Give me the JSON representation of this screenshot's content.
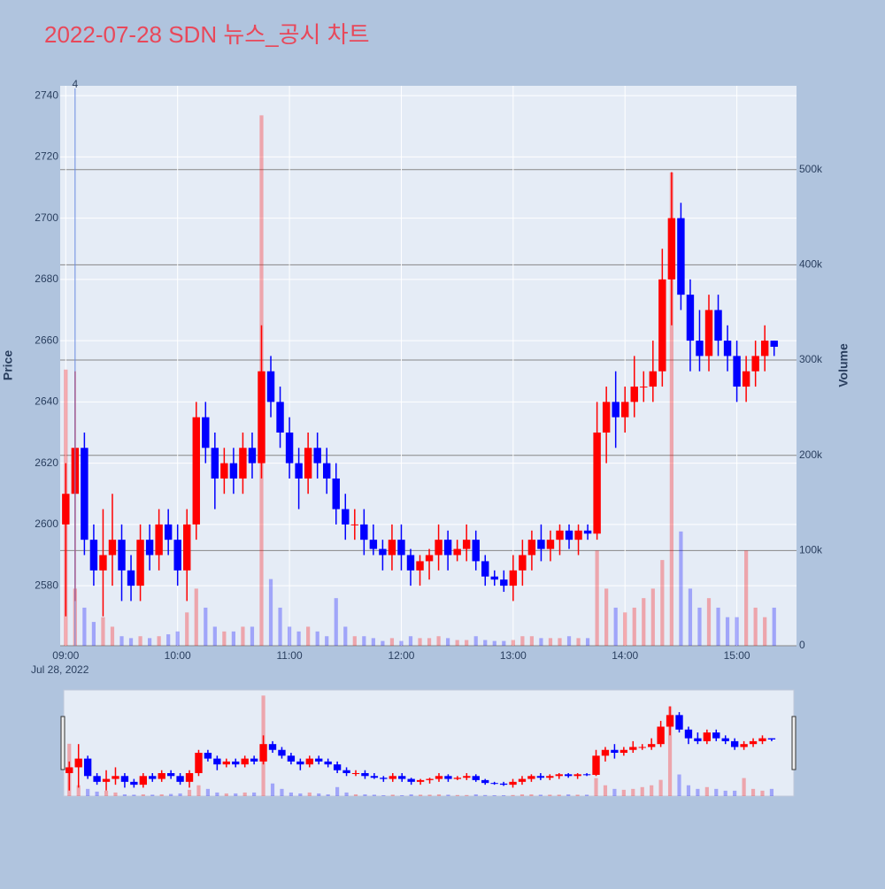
{
  "chart_data": {
    "type": "candlestick",
    "title": "2022-07-28 SDN 뉴스_공시 차트",
    "y_label": "Price",
    "y2_label": "Volume",
    "x_date_label": "Jul 28, 2022",
    "annotation": {
      "x": "09:05",
      "text": "4"
    },
    "increasing_color": "#ff0000",
    "decreasing_color": "#0000ff",
    "x": [
      "09:00",
      "09:05",
      "09:10",
      "09:15",
      "09:20",
      "09:25",
      "09:30",
      "09:35",
      "09:40",
      "09:45",
      "09:50",
      "09:55",
      "10:00",
      "10:05",
      "10:10",
      "10:15",
      "10:20",
      "10:25",
      "10:30",
      "10:35",
      "10:40",
      "10:45",
      "10:50",
      "10:55",
      "11:00",
      "11:05",
      "11:10",
      "11:15",
      "11:20",
      "11:25",
      "11:30",
      "11:35",
      "11:40",
      "11:45",
      "11:50",
      "11:55",
      "12:00",
      "12:05",
      "12:10",
      "12:15",
      "12:20",
      "12:25",
      "12:30",
      "12:35",
      "12:40",
      "12:45",
      "12:50",
      "12:55",
      "13:00",
      "13:05",
      "13:10",
      "13:15",
      "13:20",
      "13:25",
      "13:30",
      "13:35",
      "13:40",
      "13:45",
      "13:50",
      "13:55",
      "14:00",
      "14:05",
      "14:10",
      "14:15",
      "14:20",
      "14:25",
      "14:30",
      "14:35",
      "14:40",
      "14:45",
      "14:50",
      "14:55",
      "15:00",
      "15:05",
      "15:10",
      "15:15",
      "15:20"
    ],
    "open": [
      2600,
      2610,
      2625,
      2595,
      2585,
      2590,
      2595,
      2585,
      2580,
      2595,
      2590,
      2600,
      2595,
      2585,
      2600,
      2635,
      2625,
      2615,
      2620,
      2615,
      2625,
      2620,
      2650,
      2640,
      2630,
      2620,
      2615,
      2625,
      2620,
      2615,
      2605,
      2600,
      2600,
      2595,
      2592,
      2590,
      2595,
      2590,
      2585,
      2588,
      2590,
      2595,
      2590,
      2592,
      2595,
      2588,
      2583,
      2582,
      2580,
      2585,
      2590,
      2595,
      2592,
      2595,
      2598,
      2595,
      2598,
      2597,
      2630,
      2640,
      2635,
      2640,
      2645,
      2645,
      2650,
      2680,
      2700,
      2675,
      2660,
      2655,
      2670,
      2660,
      2655,
      2645,
      2650,
      2655,
      2660
    ],
    "high": [
      2620,
      2650,
      2630,
      2600,
      2605,
      2610,
      2600,
      2590,
      2600,
      2600,
      2605,
      2605,
      2600,
      2605,
      2640,
      2640,
      2630,
      2625,
      2625,
      2630,
      2630,
      2665,
      2655,
      2645,
      2635,
      2625,
      2630,
      2630,
      2625,
      2620,
      2610,
      2605,
      2605,
      2600,
      2595,
      2600,
      2600,
      2592,
      2590,
      2592,
      2600,
      2598,
      2595,
      2600,
      2598,
      2590,
      2585,
      2585,
      2590,
      2595,
      2598,
      2600,
      2598,
      2600,
      2600,
      2600,
      2600,
      2640,
      2645,
      2650,
      2645,
      2655,
      2650,
      2660,
      2690,
      2715,
      2705,
      2680,
      2670,
      2675,
      2675,
      2665,
      2660,
      2655,
      2660,
      2665,
      2660
    ],
    "low": [
      2570,
      2575,
      2590,
      2580,
      2570,
      2580,
      2575,
      2575,
      2575,
      2585,
      2585,
      2590,
      2580,
      2575,
      2595,
      2620,
      2605,
      2610,
      2610,
      2610,
      2615,
      2615,
      2635,
      2625,
      2615,
      2605,
      2610,
      2615,
      2610,
      2600,
      2595,
      2595,
      2590,
      2590,
      2585,
      2585,
      2585,
      2580,
      2580,
      2582,
      2585,
      2585,
      2588,
      2588,
      2585,
      2580,
      2580,
      2578,
      2575,
      2580,
      2585,
      2588,
      2588,
      2590,
      2592,
      2590,
      2595,
      2595,
      2620,
      2625,
      2630,
      2635,
      2640,
      2640,
      2645,
      2665,
      2670,
      2650,
      2650,
      2650,
      2655,
      2650,
      2640,
      2640,
      2645,
      2650,
      2655
    ],
    "close": [
      2610,
      2625,
      2595,
      2585,
      2590,
      2595,
      2585,
      2580,
      2595,
      2590,
      2600,
      2595,
      2585,
      2600,
      2635,
      2625,
      2615,
      2620,
      2615,
      2625,
      2620,
      2650,
      2640,
      2630,
      2620,
      2615,
      2625,
      2620,
      2615,
      2605,
      2600,
      2600,
      2595,
      2592,
      2590,
      2595,
      2590,
      2585,
      2588,
      2590,
      2595,
      2590,
      2592,
      2595,
      2588,
      2583,
      2582,
      2580,
      2585,
      2590,
      2595,
      2592,
      2595,
      2598,
      2595,
      2598,
      2597,
      2630,
      2640,
      2635,
      2640,
      2645,
      2645,
      2650,
      2680,
      2700,
      2675,
      2660,
      2655,
      2670,
      2660,
      2655,
      2645,
      2650,
      2655,
      2660,
      2658
    ],
    "volume": [
      290000,
      60000,
      40000,
      25000,
      30000,
      20000,
      10000,
      8000,
      10000,
      8000,
      10000,
      12000,
      15000,
      35000,
      60000,
      40000,
      20000,
      15000,
      15000,
      20000,
      20000,
      557000,
      70000,
      40000,
      20000,
      15000,
      20000,
      15000,
      10000,
      50000,
      20000,
      10000,
      10000,
      8000,
      5000,
      8000,
      5000,
      10000,
      8000,
      8000,
      10000,
      8000,
      6000,
      6000,
      10000,
      6000,
      5000,
      5000,
      6000,
      10000,
      10000,
      8000,
      8000,
      8000,
      10000,
      8000,
      8000,
      100000,
      60000,
      40000,
      35000,
      40000,
      50000,
      60000,
      90000,
      497000,
      120000,
      60000,
      40000,
      50000,
      40000,
      30000,
      30000,
      100000,
      40000,
      30000,
      40000
    ],
    "xlim": [
      "08:57",
      "15:32"
    ],
    "xticks": [
      "09:00",
      "10:00",
      "11:00",
      "12:00",
      "13:00",
      "14:00",
      "15:00"
    ],
    "ylim": [
      2560.4,
      2743.2
    ],
    "yticks": [
      2580,
      2600,
      2620,
      2640,
      2660,
      2680,
      2700,
      2720,
      2740
    ],
    "y2lim": [
      0,
      588000
    ],
    "y2ticks": [
      0,
      {
        "value": 100000,
        "label": "100k"
      },
      {
        "value": 200000,
        "label": "200k"
      },
      {
        "value": 300000,
        "label": "300k"
      },
      {
        "value": 400000,
        "label": "400k"
      },
      {
        "value": 500000,
        "label": "500k"
      }
    ],
    "grid": true
  }
}
